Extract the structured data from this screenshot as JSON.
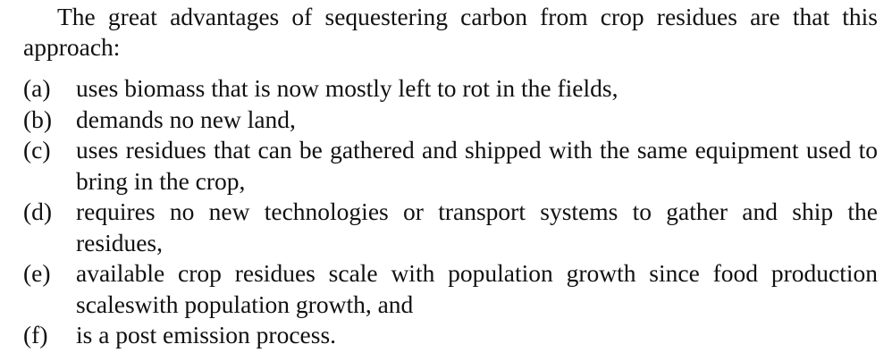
{
  "intro": "The great advantages of sequestering carbon from crop residues are that this approach:",
  "items": [
    {
      "marker": "(a)",
      "text": "uses biomass that is now mostly left to rot in the fields,"
    },
    {
      "marker": "(b)",
      "text": "demands no new land,"
    },
    {
      "marker": "(c)",
      "text": "uses residues that can be gathered and shipped with the same equipment used to bring in the crop,"
    },
    {
      "marker": "(d)",
      "text": "requires no new technologies or transport systems to gather and ship the residues,"
    },
    {
      "marker": "(e)",
      "text": "available crop residues scale with population growth since food production scaleswith population growth, and"
    },
    {
      "marker": "(f)",
      "text": "is a post emission process."
    }
  ]
}
